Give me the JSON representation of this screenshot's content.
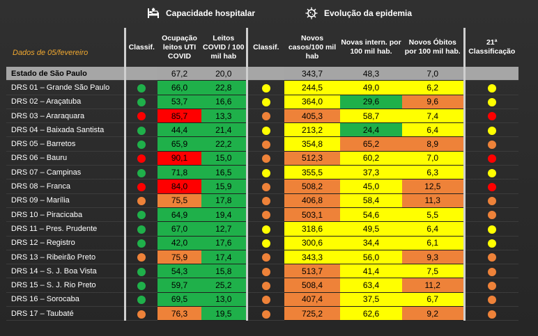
{
  "headers": {
    "capacity_title": "Capacidade hospitalar",
    "evolution_title": "Evolução da epidemia",
    "date_label": "Dados de 05/fevereiro",
    "classif": "Classif.",
    "occupancy": "Ocupação leitos UTI COVID",
    "beds": "Leitos COVID / 100 mil hab",
    "classif2": "Classif.",
    "new_cases": "Novos casos/100 mil hab",
    "new_hosp": "Novas intern. por 100 mil hab.",
    "new_deaths": "Novos Óbitos por 100 mil hab.",
    "classification21": "21ª Classificação"
  },
  "colors": {
    "green": "#1fb04a",
    "red": "#ff0000",
    "orange": "#ee8239",
    "yellow": "#ffff00"
  },
  "state": {
    "name": "Estado de São Paulo",
    "occupancy": "67,2",
    "beds": "20,0",
    "new_cases": "343,7",
    "new_hosp": "48,3",
    "new_deaths": "7,0"
  },
  "rows": [
    {
      "name": "DRS 01 – Grande São Paulo",
      "c1": "green",
      "occ": "66,0",
      "occ_c": "green",
      "beds": "22,8",
      "beds_c": "green",
      "c2": "yellow",
      "cases": "244,5",
      "cases_c": "yellow",
      "hosp": "49,0",
      "hosp_c": "yellow",
      "deaths": "6,2",
      "deaths_c": "yellow",
      "c3": "yellow"
    },
    {
      "name": "DRS 02 – Araçatuba",
      "c1": "green",
      "occ": "53,7",
      "occ_c": "green",
      "beds": "16,6",
      "beds_c": "green",
      "c2": "yellow",
      "cases": "364,0",
      "cases_c": "yellow",
      "hosp": "29,6",
      "hosp_c": "green",
      "deaths": "9,6",
      "deaths_c": "orange",
      "c3": "yellow"
    },
    {
      "name": "DRS 03 – Araraquara",
      "c1": "red",
      "occ": "85,7",
      "occ_c": "red",
      "beds": "13,3",
      "beds_c": "green",
      "c2": "orange",
      "cases": "405,3",
      "cases_c": "orange",
      "hosp": "58,7",
      "hosp_c": "yellow",
      "deaths": "7,4",
      "deaths_c": "yellow",
      "c3": "red"
    },
    {
      "name": "DRS 04 – Baixada Santista",
      "c1": "green",
      "occ": "44,4",
      "occ_c": "green",
      "beds": "21,4",
      "beds_c": "green",
      "c2": "yellow",
      "cases": "213,2",
      "cases_c": "yellow",
      "hosp": "24,4",
      "hosp_c": "green",
      "deaths": "6,4",
      "deaths_c": "yellow",
      "c3": "yellow"
    },
    {
      "name": "DRS 05 – Barretos",
      "c1": "green",
      "occ": "65,9",
      "occ_c": "green",
      "beds": "22,2",
      "beds_c": "green",
      "c2": "orange",
      "cases": "354,8",
      "cases_c": "yellow",
      "hosp": "65,2",
      "hosp_c": "orange",
      "deaths": "8,9",
      "deaths_c": "orange",
      "c3": "orange"
    },
    {
      "name": "DRS 06 – Bauru",
      "c1": "red",
      "occ": "90,1",
      "occ_c": "red",
      "beds": "15,0",
      "beds_c": "green",
      "c2": "orange",
      "cases": "512,3",
      "cases_c": "orange",
      "hosp": "60,2",
      "hosp_c": "yellow",
      "deaths": "7,0",
      "deaths_c": "yellow",
      "c3": "red"
    },
    {
      "name": "DRS 07 – Campinas",
      "c1": "green",
      "occ": "71,8",
      "occ_c": "green",
      "beds": "16,5",
      "beds_c": "green",
      "c2": "yellow",
      "cases": "355,5",
      "cases_c": "yellow",
      "hosp": "37,3",
      "hosp_c": "yellow",
      "deaths": "6,3",
      "deaths_c": "yellow",
      "c3": "yellow"
    },
    {
      "name": "DRS 08 – Franca",
      "c1": "red",
      "occ": "84,0",
      "occ_c": "red",
      "beds": "15,9",
      "beds_c": "green",
      "c2": "orange",
      "cases": "508,2",
      "cases_c": "orange",
      "hosp": "45,0",
      "hosp_c": "yellow",
      "deaths": "12,5",
      "deaths_c": "orange",
      "c3": "red"
    },
    {
      "name": "DRS 09 – Marília",
      "c1": "orange",
      "occ": "75,5",
      "occ_c": "orange",
      "beds": "17,8",
      "beds_c": "green",
      "c2": "orange",
      "cases": "406,8",
      "cases_c": "orange",
      "hosp": "58,4",
      "hosp_c": "yellow",
      "deaths": "11,3",
      "deaths_c": "orange",
      "c3": "orange"
    },
    {
      "name": "DRS 10 – Piracicaba",
      "c1": "green",
      "occ": "64,9",
      "occ_c": "green",
      "beds": "19,4",
      "beds_c": "green",
      "c2": "orange",
      "cases": "503,1",
      "cases_c": "orange",
      "hosp": "54,6",
      "hosp_c": "yellow",
      "deaths": "5,5",
      "deaths_c": "yellow",
      "c3": "orange"
    },
    {
      "name": "DRS 11 – Pres. Prudente",
      "c1": "green",
      "occ": "67,0",
      "occ_c": "green",
      "beds": "12,7",
      "beds_c": "green",
      "c2": "yellow",
      "cases": "318,6",
      "cases_c": "yellow",
      "hosp": "49,5",
      "hosp_c": "yellow",
      "deaths": "6,4",
      "deaths_c": "yellow",
      "c3": "yellow"
    },
    {
      "name": "DRS 12 – Registro",
      "c1": "green",
      "occ": "42,0",
      "occ_c": "green",
      "beds": "17,6",
      "beds_c": "green",
      "c2": "yellow",
      "cases": "300,6",
      "cases_c": "yellow",
      "hosp": "34,4",
      "hosp_c": "yellow",
      "deaths": "6,1",
      "deaths_c": "yellow",
      "c3": "yellow"
    },
    {
      "name": "DRS 13 – Ribeirão Preto",
      "c1": "orange",
      "occ": "75,9",
      "occ_c": "orange",
      "beds": "17,4",
      "beds_c": "green",
      "c2": "orange",
      "cases": "343,3",
      "cases_c": "yellow",
      "hosp": "56,0",
      "hosp_c": "yellow",
      "deaths": "9,3",
      "deaths_c": "orange",
      "c3": "orange"
    },
    {
      "name": "DRS 14 – S. J. Boa Vista",
      "c1": "green",
      "occ": "54,3",
      "occ_c": "green",
      "beds": "15,8",
      "beds_c": "green",
      "c2": "orange",
      "cases": "513,7",
      "cases_c": "orange",
      "hosp": "41,4",
      "hosp_c": "yellow",
      "deaths": "7,5",
      "deaths_c": "yellow",
      "c3": "orange"
    },
    {
      "name": "DRS 15 – S. J. Rio Preto",
      "c1": "green",
      "occ": "59,7",
      "occ_c": "green",
      "beds": "25,2",
      "beds_c": "green",
      "c2": "orange",
      "cases": "508,4",
      "cases_c": "orange",
      "hosp": "63,4",
      "hosp_c": "yellow",
      "deaths": "11,2",
      "deaths_c": "orange",
      "c3": "orange"
    },
    {
      "name": "DRS 16 – Sorocaba",
      "c1": "green",
      "occ": "69,5",
      "occ_c": "green",
      "beds": "13,0",
      "beds_c": "green",
      "c2": "orange",
      "cases": "407,4",
      "cases_c": "orange",
      "hosp": "37,5",
      "hosp_c": "yellow",
      "deaths": "6,7",
      "deaths_c": "yellow",
      "c3": "orange"
    },
    {
      "name": "DRS 17 – Taubaté",
      "c1": "orange",
      "occ": "76,3",
      "occ_c": "orange",
      "beds": "19,5",
      "beds_c": "green",
      "c2": "orange",
      "cases": "725,2",
      "cases_c": "orange",
      "hosp": "62,6",
      "hosp_c": "yellow",
      "deaths": "9,2",
      "deaths_c": "orange",
      "c3": "orange"
    }
  ]
}
